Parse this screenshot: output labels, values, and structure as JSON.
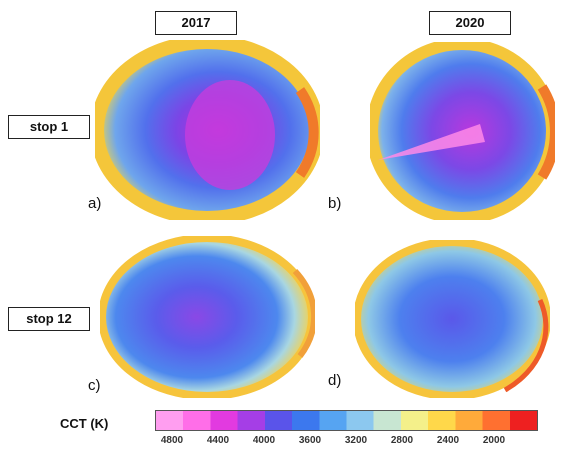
{
  "columns": [
    {
      "label": "2017"
    },
    {
      "label": "2020"
    }
  ],
  "rows": [
    {
      "label": "stop 1"
    },
    {
      "label": "stop 12"
    }
  ],
  "panels": [
    {
      "letter": "a)"
    },
    {
      "letter": "b)"
    },
    {
      "letter": "c)"
    },
    {
      "letter": "d)"
    }
  ],
  "colorbar": {
    "title": "CCT (K)",
    "ticks": [
      "4800",
      "4400",
      "4000",
      "3600",
      "3200",
      "2800",
      "2400",
      "2000"
    ],
    "colors": [
      "#ff9ef0",
      "#ff6ee8",
      "#e23ae0",
      "#a53ee6",
      "#5a54ea",
      "#3c78ee",
      "#56a4f2",
      "#8cc8ef",
      "#c8e6d2",
      "#f4f08a",
      "#ffd84a",
      "#ffaa3a",
      "#ff7030",
      "#ee2020"
    ]
  }
}
